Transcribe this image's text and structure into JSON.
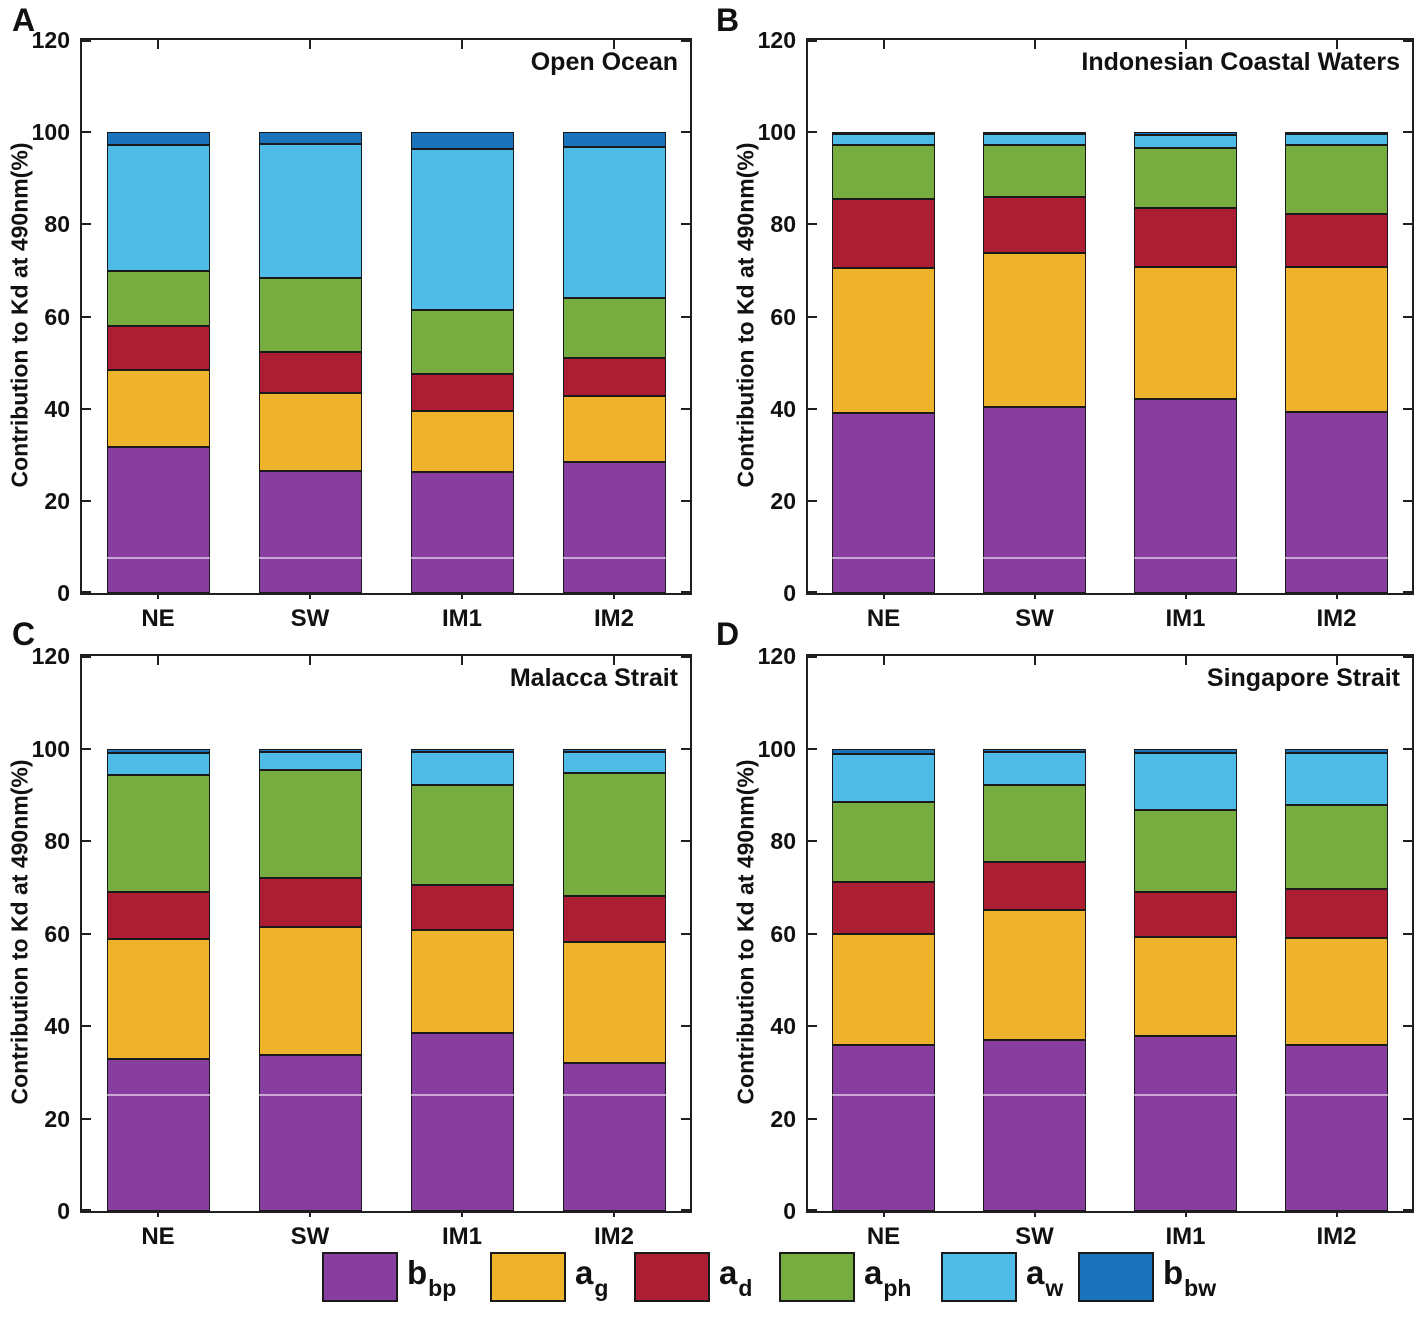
{
  "chart_data": [
    {
      "type": "bar",
      "stacked": true,
      "panel_letter": "A",
      "title": "Open Ocean",
      "ylabel": "Contribution to Kd at 490nm(%)",
      "ylim": [
        0,
        120
      ],
      "yticks": [
        0,
        20,
        40,
        60,
        80,
        100,
        120
      ],
      "categories": [
        "NE",
        "SW",
        "IM1",
        "IM2"
      ],
      "series": [
        {
          "name": "b_bp",
          "values": [
            31.7,
            26.4,
            26.3,
            28.5
          ]
        },
        {
          "name": "a_g",
          "values": [
            16.6,
            16.9,
            13.2,
            14.2
          ]
        },
        {
          "name": "a_d",
          "values": [
            9.7,
            9.1,
            8.1,
            8.3
          ]
        },
        {
          "name": "a_ph",
          "values": [
            11.9,
            16.0,
            13.9,
            13.1
          ]
        },
        {
          "name": "a_w",
          "values": [
            27.4,
            29.1,
            34.9,
            32.7
          ]
        },
        {
          "name": "b_bw",
          "values": [
            2.7,
            2.5,
            3.6,
            3.2
          ]
        }
      ],
      "artifact_line_y": 7.5
    },
    {
      "type": "bar",
      "stacked": true,
      "panel_letter": "B",
      "title": "Indonesian Coastal Waters",
      "ylabel": "Contribution to Kd at 490nm(%)",
      "ylim": [
        0,
        120
      ],
      "yticks": [
        0,
        20,
        40,
        60,
        80,
        100,
        120
      ],
      "categories": [
        "NE",
        "SW",
        "IM1",
        "IM2"
      ],
      "series": [
        {
          "name": "b_bp",
          "values": [
            39.1,
            40.4,
            42.1,
            39.3
          ]
        },
        {
          "name": "a_g",
          "values": [
            31.5,
            33.4,
            28.7,
            31.5
          ]
        },
        {
          "name": "a_d",
          "values": [
            14.8,
            12.1,
            12.8,
            11.4
          ]
        },
        {
          "name": "a_ph",
          "values": [
            11.8,
            11.3,
            13.0,
            15.0
          ]
        },
        {
          "name": "a_w",
          "values": [
            2.5,
            2.5,
            2.8,
            2.5
          ]
        },
        {
          "name": "b_bw",
          "values": [
            0.3,
            0.3,
            0.6,
            0.3
          ]
        }
      ],
      "artifact_line_y": 7.5
    },
    {
      "type": "bar",
      "stacked": true,
      "panel_letter": "C",
      "title": "Malacca Strait",
      "ylabel": "Contribution to Kd at 490nm(%)",
      "ylim": [
        0,
        120
      ],
      "yticks": [
        0,
        20,
        40,
        60,
        80,
        100,
        120
      ],
      "categories": [
        "NE",
        "SW",
        "IM1",
        "IM2"
      ],
      "series": [
        {
          "name": "b_bp",
          "values": [
            32.9,
            33.7,
            38.4,
            32.0
          ]
        },
        {
          "name": "a_g",
          "values": [
            26.0,
            27.7,
            22.3,
            26.2
          ]
        },
        {
          "name": "a_d",
          "values": [
            10.1,
            10.5,
            9.7,
            10.0
          ]
        },
        {
          "name": "a_ph",
          "values": [
            25.2,
            23.4,
            21.7,
            26.4
          ]
        },
        {
          "name": "a_w",
          "values": [
            4.9,
            3.9,
            7.1,
            4.6
          ]
        },
        {
          "name": "b_bw",
          "values": [
            0.9,
            0.8,
            0.8,
            0.8
          ]
        }
      ],
      "artifact_line_y": 25
    },
    {
      "type": "bar",
      "stacked": true,
      "panel_letter": "D",
      "title": "Singapore Strait",
      "ylabel": "Contribution to Kd at 490nm(%)",
      "ylim": [
        0,
        120
      ],
      "yticks": [
        0,
        20,
        40,
        60,
        80,
        100,
        120
      ],
      "categories": [
        "NE",
        "SW",
        "IM1",
        "IM2"
      ],
      "series": [
        {
          "name": "b_bp",
          "values": [
            35.9,
            37.0,
            37.8,
            35.9
          ]
        },
        {
          "name": "a_g",
          "values": [
            24.0,
            28.0,
            21.4,
            23.1
          ]
        },
        {
          "name": "a_d",
          "values": [
            11.2,
            10.5,
            9.8,
            10.7
          ]
        },
        {
          "name": "a_ph",
          "values": [
            17.4,
            16.6,
            17.7,
            18.1
          ]
        },
        {
          "name": "a_w",
          "values": [
            10.4,
            7.2,
            12.3,
            11.3
          ]
        },
        {
          "name": "b_bw",
          "values": [
            1.1,
            0.7,
            1.0,
            0.9
          ]
        }
      ],
      "artifact_line_y": 25
    }
  ],
  "legend": {
    "entries": [
      {
        "series": "b_bp",
        "symbol": "b",
        "subscript": "bp",
        "color": "#873E9E"
      },
      {
        "series": "a_g",
        "symbol": "a",
        "subscript": "g",
        "color": "#EFB32B"
      },
      {
        "series": "a_d",
        "symbol": "a",
        "subscript": "d",
        "color": "#AB1E33"
      },
      {
        "series": "a_ph",
        "symbol": "a",
        "subscript": "ph",
        "color": "#76AC40"
      },
      {
        "series": "a_w",
        "symbol": "a",
        "subscript": "w",
        "color": "#4FBCE8"
      },
      {
        "series": "b_bw",
        "symbol": "b",
        "subscript": "bw",
        "color": "#1B74BB"
      }
    ]
  },
  "colors": {
    "b_bp": "#873E9E",
    "a_g": "#EFB32B",
    "a_d": "#AB1E33",
    "a_ph": "#76AC40",
    "a_w": "#4FBCE8",
    "b_bw": "#1B74BB",
    "bar_edge": "#1a1a1a",
    "axis": "#1f1f1f"
  }
}
